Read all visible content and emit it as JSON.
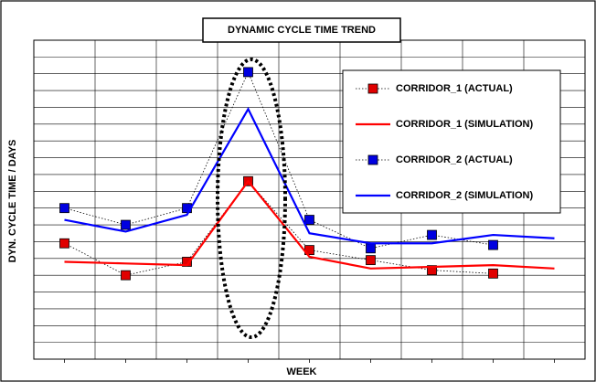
{
  "chart_data": {
    "type": "line",
    "title": "DYNAMIC CYCLE TIME TREND",
    "x_label": "WEEK",
    "y_label": "DYN. CYCLE TIME / DAYS",
    "categories": [
      null,
      null,
      null,
      null,
      null,
      null,
      null,
      null,
      null
    ],
    "series": [
      {
        "name": "CORRIDOR_1 (ACTUAL)",
        "color": "#e00000",
        "style": "dotted-marker",
        "values": [
          6.9,
          5.0,
          5.8,
          10.6,
          6.5,
          5.9,
          5.3,
          5.1,
          null
        ]
      },
      {
        "name": "CORRIDOR_1 (SIMULATION)",
        "color": "#ff0000",
        "style": "solid",
        "values": [
          5.8,
          5.7,
          5.6,
          10.6,
          6.1,
          5.4,
          5.5,
          5.6,
          5.4
        ]
      },
      {
        "name": "CORRIDOR_2 (ACTUAL)",
        "color": "#0000e0",
        "style": "dotted-marker",
        "values": [
          9.0,
          8.0,
          9.0,
          17.1,
          8.3,
          6.6,
          7.4,
          6.8,
          null
        ]
      },
      {
        "name": "CORRIDOR_2 (SIMULATION)",
        "color": "#0000ff",
        "style": "solid",
        "values": [
          8.3,
          7.6,
          8.6,
          14.9,
          7.5,
          6.9,
          6.9,
          7.4,
          7.2
        ]
      }
    ],
    "ylim": [
      0,
      19
    ],
    "yticks": [
      0,
      1,
      2,
      3,
      4,
      5,
      6,
      7,
      8,
      9,
      10,
      11,
      12,
      13,
      14,
      15,
      16,
      17,
      18,
      19
    ],
    "grid": true,
    "legend": "upper right"
  }
}
